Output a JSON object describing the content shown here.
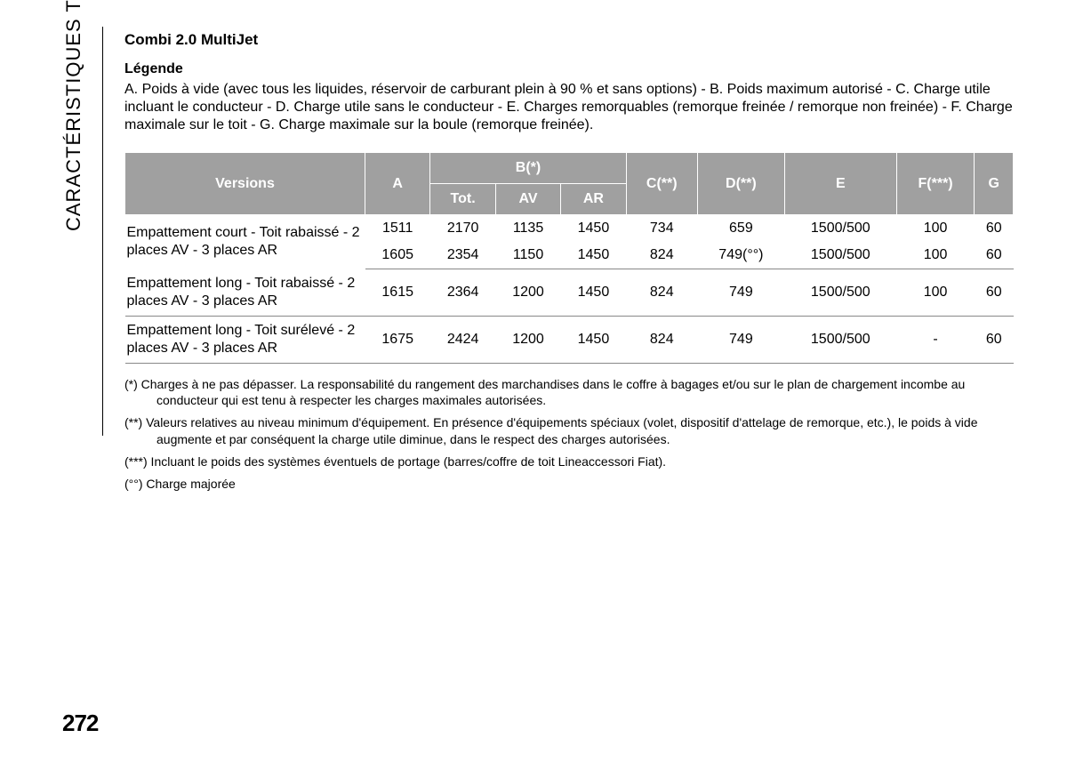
{
  "sidebar": {
    "label": "CARACTÉRISTIQUES TECHNIQUES"
  },
  "title": "Combi 2.0 MultiJet",
  "legend": {
    "heading": "Légende",
    "text": "A. Poids à vide (avec tous les liquides, réservoir de carburant plein à 90 % et sans options) - B. Poids maximum autorisé - C. Charge utile incluant le conducteur - D. Charge utile sans le conducteur - E. Charges remorquables (remorque freinée / remorque non freinée) - F. Charge maximale sur le toit - G. Charge maximale sur la boule (remorque freinée)."
  },
  "table": {
    "columns": {
      "versions": "Versions",
      "A": "A",
      "B": "B(*)",
      "B_sub": {
        "tot": "Tot.",
        "av": "AV",
        "ar": "AR"
      },
      "C": "C(**)",
      "D": "D(**)",
      "E": "E",
      "F": "F(***)",
      "G": "G"
    },
    "rows": [
      {
        "label": "Empattement court - Toit rabaissé - 2 places AV - 3 places AR",
        "A": "1511",
        "Tot": "2170",
        "AV": "1135",
        "AR": "1450",
        "C": "734",
        "D": "659",
        "E": "1500/500",
        "F": "100",
        "G": "60"
      },
      {
        "label": "",
        "A": "1605",
        "Tot": "2354",
        "AV": "1150",
        "AR": "1450",
        "C": "824",
        "D": "749(°°)",
        "E": "1500/500",
        "F": "100",
        "G": "60"
      },
      {
        "label": "Empattement long - Toit rabaissé - 2 places AV - 3 places AR",
        "A": "1615",
        "Tot": "2364",
        "AV": "1200",
        "AR": "1450",
        "C": "824",
        "D": "749",
        "E": "1500/500",
        "F": "100",
        "G": "60"
      },
      {
        "label": "Empattement long - Toit surélevé - 2 places AV - 3 places AR",
        "A": "1675",
        "Tot": "2424",
        "AV": "1200",
        "AR": "1450",
        "C": "824",
        "D": "749",
        "E": "1500/500",
        "F": "-",
        "G": "60"
      }
    ]
  },
  "footnotes": {
    "n1": "(*) Charges à ne pas dépasser. La responsabilité du rangement des marchandises dans le coffre à bagages et/ou sur le plan de chargement incombe au conducteur qui est tenu à respecter les charges maximales autorisées.",
    "n2": "(**) Valeurs relatives au niveau minimum d'équipement. En présence d'équipements spéciaux (volet, dispositif d'attelage de remorque, etc.), le poids à vide augmente et par conséquent la charge utile diminue, dans le respect des charges autorisées.",
    "n3": "(***) Incluant le poids des systèmes éventuels de portage (barres/coffre de toit Lineaccessori Fiat).",
    "n4": "(°°) Charge majorée"
  },
  "page_number": "272",
  "style": {
    "header_bg": "#a0a0a0",
    "header_fg": "#ffffff",
    "body_font_size": 16,
    "footnote_font_size": 14,
    "border_color": "#888888"
  }
}
